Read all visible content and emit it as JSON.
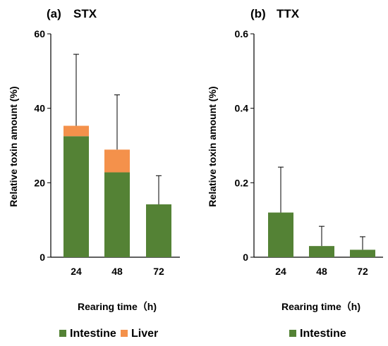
{
  "colors": {
    "intestine": "#548235",
    "liver": "#F4914B",
    "axis": "#000000",
    "error": "#000000"
  },
  "legend": {
    "intestine": "Intestine",
    "liver": "Liver"
  },
  "chart_data": [
    {
      "type": "bar",
      "panel": "(a)",
      "title": "STX",
      "xlabel": "Rearing time（h)",
      "ylabel": "Relative toxin amount (%)",
      "categories": [
        "24",
        "48",
        "72"
      ],
      "ylim": [
        0,
        60
      ],
      "yticks": [
        "0",
        "20",
        "40",
        "60"
      ],
      "stacked": true,
      "series": [
        {
          "name": "Intestine",
          "values": [
            32.5,
            22.8,
            14.2
          ]
        },
        {
          "name": "Liver",
          "values": [
            2.8,
            6.1,
            0
          ]
        }
      ],
      "error_upper": [
        54.5,
        43.6,
        21.9
      ],
      "legend": [
        "Intestine",
        "Liver"
      ],
      "legend_position": "bottom",
      "grid": false
    },
    {
      "type": "bar",
      "panel": "(b)",
      "title": "TTX",
      "xlabel": "Rearing time（h)",
      "ylabel": "Relative toxin amount (%)",
      "categories": [
        "24",
        "48",
        "72"
      ],
      "ylim": [
        0,
        0.6
      ],
      "yticks": [
        "0",
        "0.2",
        "0.4",
        "0.6"
      ],
      "stacked": true,
      "series": [
        {
          "name": "Intestine",
          "values": [
            0.12,
            0.03,
            0.02
          ]
        }
      ],
      "error_upper": [
        0.242,
        0.083,
        0.055
      ],
      "legend": [
        "Intestine"
      ],
      "legend_position": "bottom",
      "grid": false
    }
  ]
}
